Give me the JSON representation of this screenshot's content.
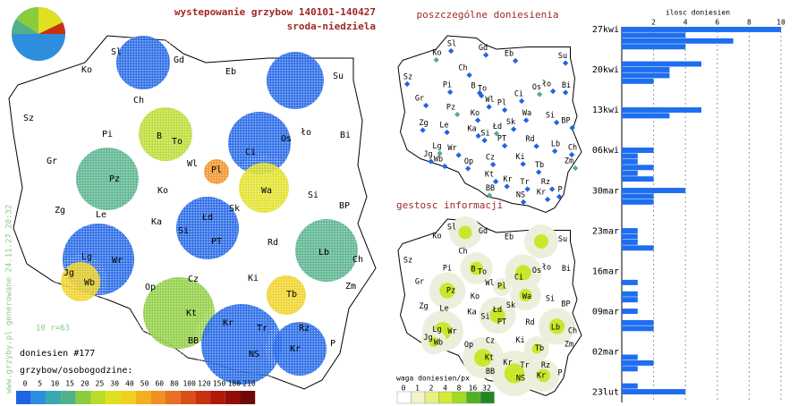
{
  "header": {
    "title": "wystepowanie grzybow 140101-140427",
    "subtitle": "sroda-niedziela"
  },
  "main_map": {
    "regions": [
      "Sl",
      "Gd",
      "Eb",
      "Ko",
      "Su",
      "Ch",
      "Sz",
      "Pi",
      "B",
      "To",
      "Os",
      "ło",
      "Bi",
      "Ci",
      "Gr",
      "Wl",
      "Pl",
      "Pz",
      "Wa",
      "Ko",
      "Si",
      "Zg",
      "Le",
      "Ka",
      "Łd",
      "Sk",
      "BP",
      "Si",
      "PT",
      "Rd",
      "Lb",
      "Lg",
      "Wr",
      "Ch",
      "Jg",
      "Wb",
      "Op",
      "Ki",
      "Zm",
      "Tb",
      "Cz",
      "Kt",
      "Kr",
      "Tr",
      "Rz",
      "BB",
      "NS",
      "Kr",
      "P"
    ],
    "count_label": "doniesien #177",
    "scale_title": "grzybow/osobogodzine:",
    "scale_labels": [
      "0",
      "5",
      "10",
      "15",
      "20",
      "25",
      "30",
      "40",
      "50",
      "60",
      "80",
      "100",
      "120",
      "150",
      "180",
      "210"
    ],
    "scale_colors": [
      "#1e64e6",
      "#2e8ede",
      "#3aa8b0",
      "#52b088",
      "#8ccc3c",
      "#b8dc2a",
      "#e0e020",
      "#f0d020",
      "#f0b020",
      "#f09020",
      "#e87020",
      "#d85018",
      "#c83010",
      "#b01808",
      "#901008",
      "#700808"
    ],
    "side_note": "www.grzyby.pl generowane 24.11.27 20:32",
    "scale_note": "10 r=63"
  },
  "reports_map": {
    "title": "poszczególne doniesienia"
  },
  "density_map": {
    "title": "gestosc informacji",
    "legend_title": "waga doniesien/px",
    "legend_labels": [
      "0",
      "1",
      "2",
      "4",
      "8",
      "16",
      "32"
    ],
    "legend_colors": [
      "#ffffff",
      "#f4f4cc",
      "#e8f080",
      "#d0ec30",
      "#a0dc20",
      "#50b020",
      "#208820"
    ]
  },
  "daily_chart": {
    "axis_label": "ilosc doniesien",
    "xlim": [
      0,
      10
    ],
    "xticks": [
      2,
      4,
      6,
      8,
      10
    ],
    "color": "#1e6ef0",
    "date_labels": [
      "27kwi",
      "20kwi",
      "13kwi",
      "06kwi",
      "30mar",
      "23mar",
      "16mar",
      "09mar",
      "02mar",
      "23lut"
    ],
    "values": [
      10,
      4,
      7,
      4,
      0,
      0,
      5,
      3,
      3,
      2,
      0,
      0,
      0,
      0,
      5,
      3,
      0,
      0,
      0,
      0,
      0,
      2,
      1,
      1,
      2,
      1,
      2,
      0,
      4,
      2,
      2,
      0,
      0,
      0,
      0,
      1,
      1,
      1,
      2,
      0,
      0,
      0,
      0,
      0,
      1,
      0,
      1,
      1,
      0,
      1,
      0,
      2,
      2,
      0,
      0,
      0,
      0,
      1,
      2,
      1,
      0,
      0,
      1,
      4
    ]
  }
}
